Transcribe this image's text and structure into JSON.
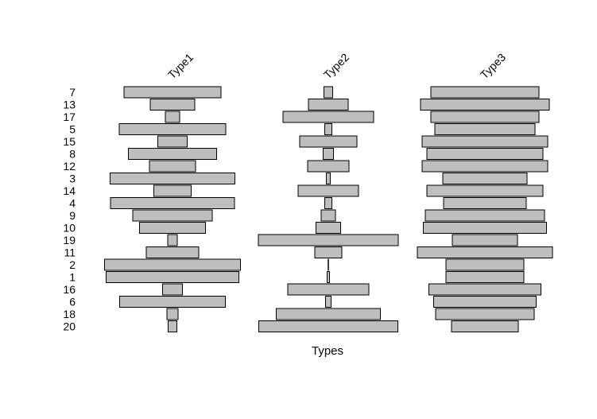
{
  "chart_data": {
    "type": "bar",
    "orientation": "horizontal-centered",
    "title": "",
    "xlabel": "Types",
    "ylabel": "",
    "categories": [
      "7",
      "13",
      "17",
      "5",
      "15",
      "8",
      "12",
      "3",
      "14",
      "4",
      "9",
      "10",
      "19",
      "11",
      "2",
      "1",
      "16",
      "6",
      "18",
      "20"
    ],
    "series": [
      {
        "name": "Type1",
        "values": [
          122,
          56,
          18,
          134,
          37,
          111,
          58,
          157,
          47,
          156,
          100,
          83,
          12,
          66,
          171,
          167,
          25,
          133,
          14,
          11
        ]
      },
      {
        "name": "Type2",
        "values": [
          11,
          50,
          114,
          9,
          72,
          13,
          52,
          5,
          76,
          9,
          18,
          31,
          176,
          34,
          0.5,
          3,
          102,
          7,
          131,
          175
        ]
      },
      {
        "name": "Type3",
        "values": [
          136,
          162,
          136,
          126,
          158,
          146,
          158,
          106,
          146,
          104,
          150,
          155,
          82,
          170,
          98,
          98,
          141,
          129,
          124,
          84
        ]
      }
    ],
    "grid": false,
    "legend": "none"
  },
  "colors": {
    "bar_fill": "#bebebe",
    "bar_stroke": "#000000",
    "text": "#000000"
  }
}
